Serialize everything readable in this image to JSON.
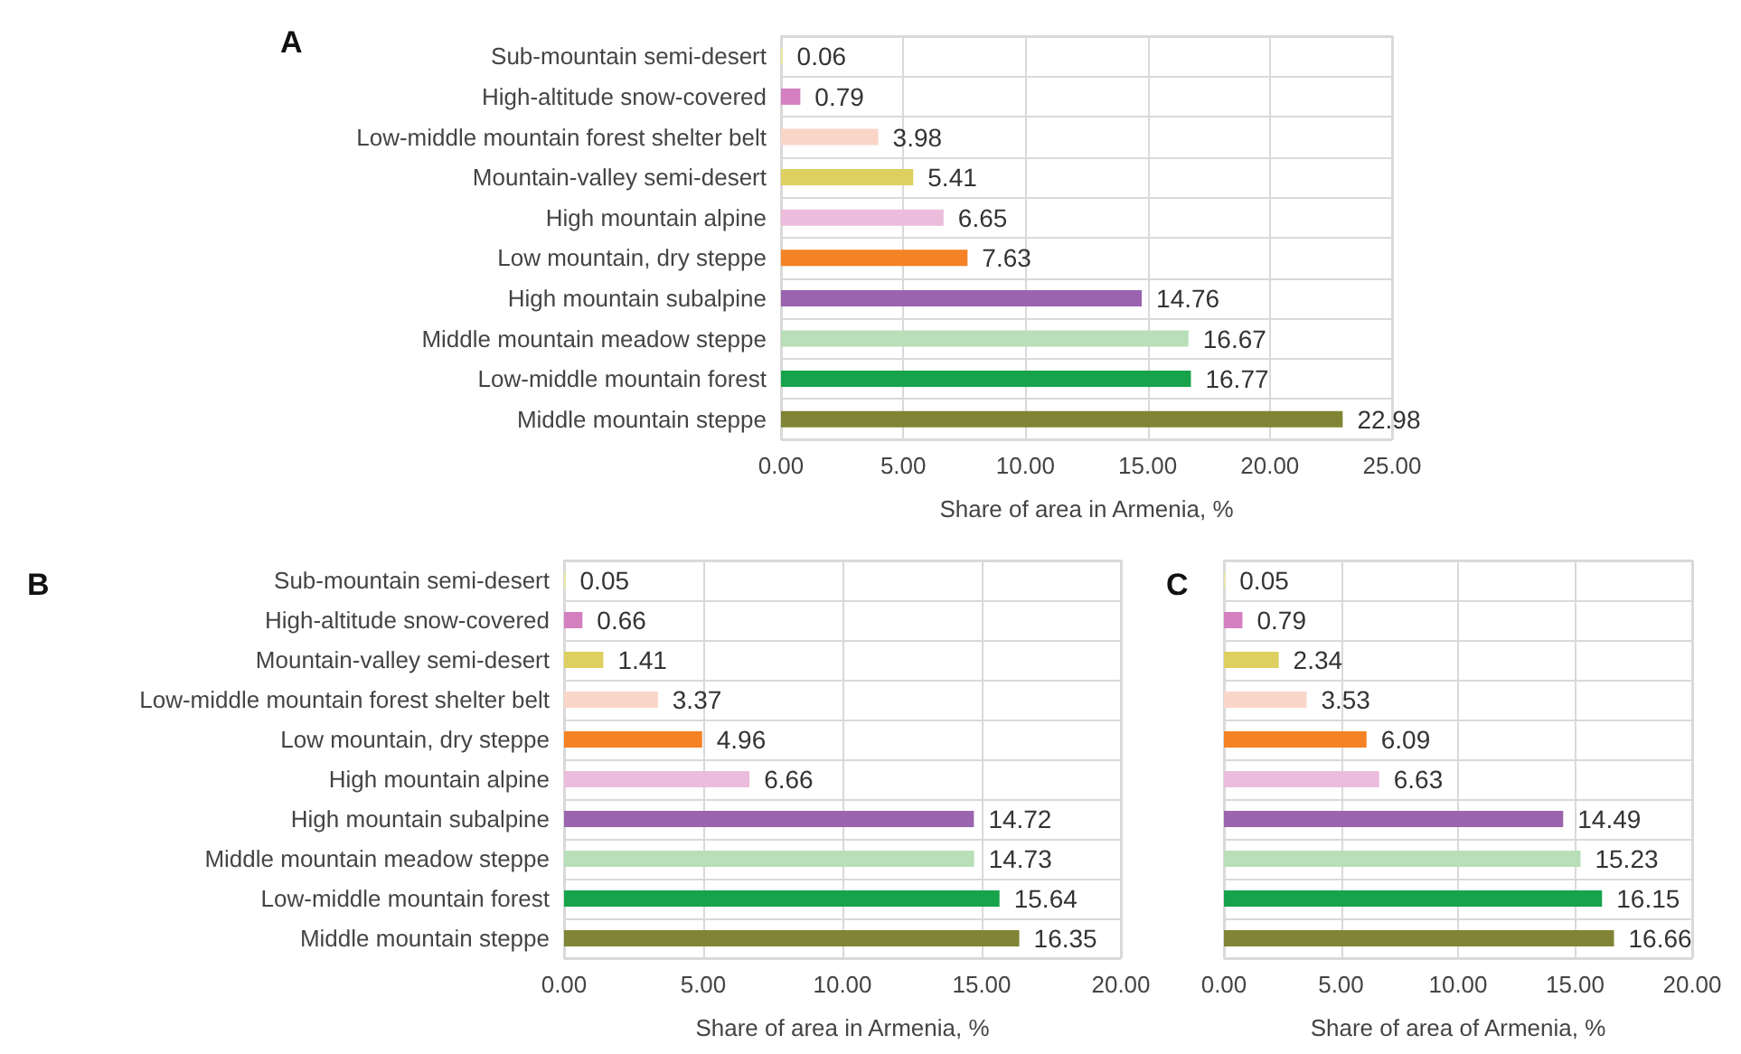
{
  "chart_data": [
    {
      "type": "bar",
      "orientation": "horizontal",
      "title": "A",
      "xlabel": "Share of area in Armenia, %",
      "categories": [
        "Sub-mountain semi-desert",
        "High-altitude snow-covered",
        "Low-middle mountain forest shelter belt",
        "Mountain-valley semi-desert",
        "High mountain alpine",
        "Low mountain, dry steppe",
        "High mountain subalpine",
        "Middle mountain meadow steppe",
        "Low-middle mountain forest",
        "Middle mountain steppe"
      ],
      "values": [
        0.06,
        0.79,
        3.98,
        5.41,
        6.65,
        7.63,
        14.76,
        16.67,
        16.77,
        22.98
      ],
      "colors": [
        "#eeea98",
        "#d47fc0",
        "#f9d6c8",
        "#ddd060",
        "#ecbcdc",
        "#f58224",
        "#9a64ae",
        "#b8dfb8",
        "#16a34c",
        "#808434"
      ],
      "xlim": [
        0,
        25
      ],
      "xticks": [
        {
          "value": 0,
          "label": "0.00"
        },
        {
          "value": 5,
          "label": "5.00"
        },
        {
          "value": 10,
          "label": "10.00"
        },
        {
          "value": 15,
          "label": "15.00"
        },
        {
          "value": 20,
          "label": "20.00"
        },
        {
          "value": 25,
          "label": "25.00"
        }
      ],
      "grid": true,
      "data_labels": true
    },
    {
      "type": "bar",
      "orientation": "horizontal",
      "title": "B",
      "xlabel": "Share of area in Armenia, %",
      "categories": [
        "Sub-mountain semi-desert",
        "High-altitude snow-covered",
        "Mountain-valley semi-desert",
        "Low-middle mountain forest shelter belt",
        "Low mountain, dry steppe",
        "High mountain alpine",
        "High mountain subalpine",
        "Middle mountain meadow steppe",
        "Low-middle mountain forest",
        "Middle mountain steppe"
      ],
      "values": [
        0.05,
        0.66,
        1.41,
        3.37,
        4.96,
        6.66,
        14.72,
        14.73,
        15.64,
        16.35
      ],
      "colors": [
        "#eeea98",
        "#d47fc0",
        "#ddd060",
        "#f9d6c8",
        "#f58224",
        "#ecbcdc",
        "#9a64ae",
        "#b8dfb8",
        "#16a34c",
        "#808434"
      ],
      "xlim": [
        0,
        20
      ],
      "xticks": [
        {
          "value": 0,
          "label": "0.00"
        },
        {
          "value": 5,
          "label": "5.00"
        },
        {
          "value": 10,
          "label": "10.00"
        },
        {
          "value": 15,
          "label": "15.00"
        },
        {
          "value": 20,
          "label": "20.00"
        }
      ],
      "grid": true,
      "data_labels": true
    },
    {
      "type": "bar",
      "orientation": "horizontal",
      "title": "C",
      "xlabel": "Share of area of Armenia, %",
      "categories": [
        null,
        null,
        null,
        null,
        null,
        null,
        null,
        null,
        null,
        null
      ],
      "values": [
        0.05,
        0.79,
        2.34,
        3.53,
        6.09,
        6.63,
        14.49,
        15.23,
        16.15,
        16.66
      ],
      "colors": [
        "#eeea98",
        "#d47fc0",
        "#ddd060",
        "#f9d6c8",
        "#f58224",
        "#ecbcdc",
        "#9a64ae",
        "#b8dfb8",
        "#16a34c",
        "#808434"
      ],
      "xlim": [
        0,
        20
      ],
      "xticks": [
        {
          "value": 0,
          "label": "0.00"
        },
        {
          "value": 5,
          "label": "5.00"
        },
        {
          "value": 10,
          "label": "10.00"
        },
        {
          "value": 15,
          "label": "15.00"
        },
        {
          "value": 20,
          "label": "20.00"
        }
      ],
      "grid": true,
      "data_labels": true
    }
  ]
}
